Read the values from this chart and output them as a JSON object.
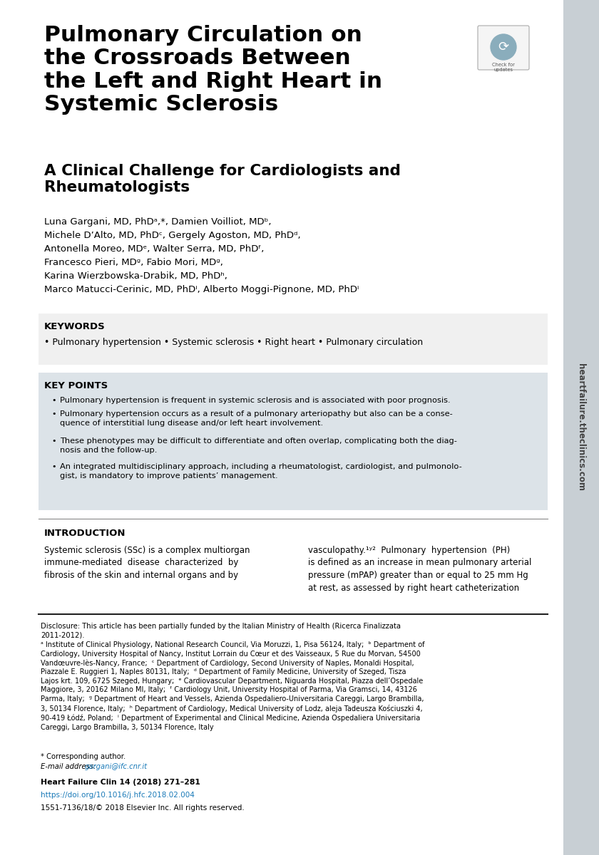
{
  "bg_color": "#ffffff",
  "page_width": 8.4,
  "page_height": 12.0,
  "title_main": "Pulmonary Circulation on\nthe Crossroads Between\nthe Left and Right Heart in\nSystemic Sclerosis",
  "title_sub": "A Clinical Challenge for Cardiologists and\nRheumatologists",
  "keywords_header": "KEYWORDS",
  "keywords": "• Pulmonary hypertension • Systemic sclerosis • Right heart • Pulmonary circulation",
  "keypoints_header": "KEY POINTS",
  "intro_header": "INTRODUCTION",
  "corresponding": "* Corresponding author.",
  "email_label": "E-mail address: ",
  "email": "gargani@ifc.cnr.it",
  "journal": "Heart Failure Clin 14 (2018) 271–281",
  "doi": "https://doi.org/10.1016/j.hfc.2018.02.004",
  "copyright": "1551-7136/18/© 2018 Elsevier Inc. All rights reserved.",
  "sidebar_text": "heartfailure.theclinics.com",
  "link_color": "#1a7ab8",
  "sidebar_color": "#c8cfd4"
}
